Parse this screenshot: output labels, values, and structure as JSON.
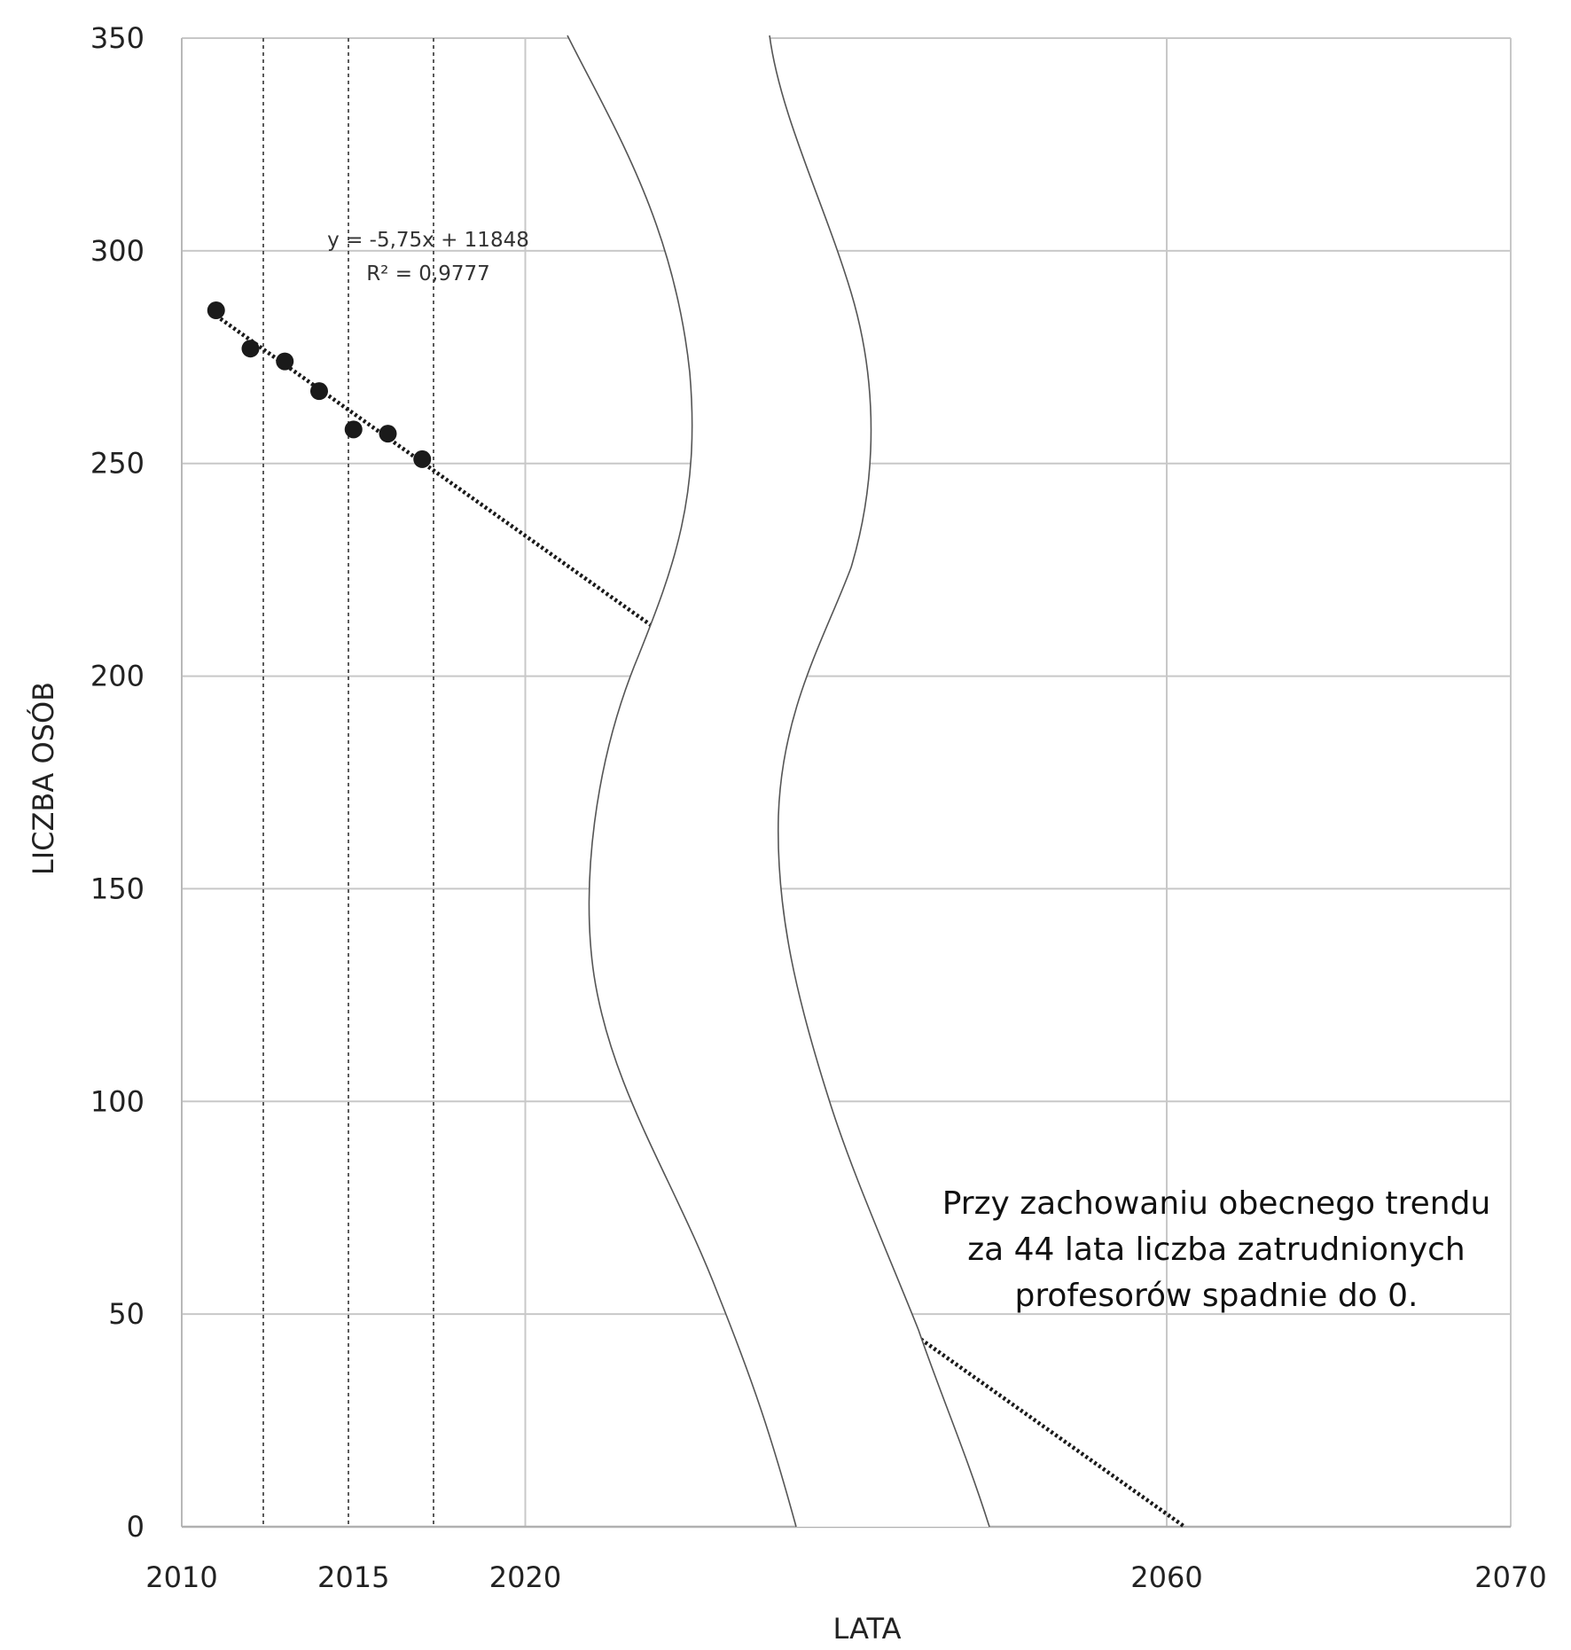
{
  "chart_data": {
    "type": "scatter",
    "title": "",
    "xlabel": "LATA",
    "ylabel": "LICZBA OSÓB",
    "grid": true,
    "broken_x_axis": true,
    "y_ticks": [
      "0",
      "50",
      "100",
      "150",
      "200",
      "250",
      "300",
      "350"
    ],
    "ylim": [
      0,
      350
    ],
    "x_ticks_left": [
      "2010",
      "2015",
      "2020"
    ],
    "x_ticks_right": [
      "2060",
      "2070"
    ],
    "series": [
      {
        "points": [
          {
            "x": 2011,
            "y": 286
          },
          {
            "x": 2012,
            "y": 277
          },
          {
            "x": 2013,
            "y": 274
          },
          {
            "x": 2014,
            "y": 267
          },
          {
            "x": 2015,
            "y": 258
          },
          {
            "x": 2016,
            "y": 257
          },
          {
            "x": 2017,
            "y": 251
          }
        ]
      }
    ],
    "trendline": {
      "type": "linear",
      "slope": -5.75,
      "intercept": 11848,
      "equation": "y = -5,75x + 11848",
      "r_squared": "R² = 0,9777"
    },
    "annotation": {
      "lines": [
        "Przy zachowaniu obecnego trendu",
        "za 44 lata liczba zatrudnionych",
        "profesorów spadnie do 0."
      ]
    }
  }
}
